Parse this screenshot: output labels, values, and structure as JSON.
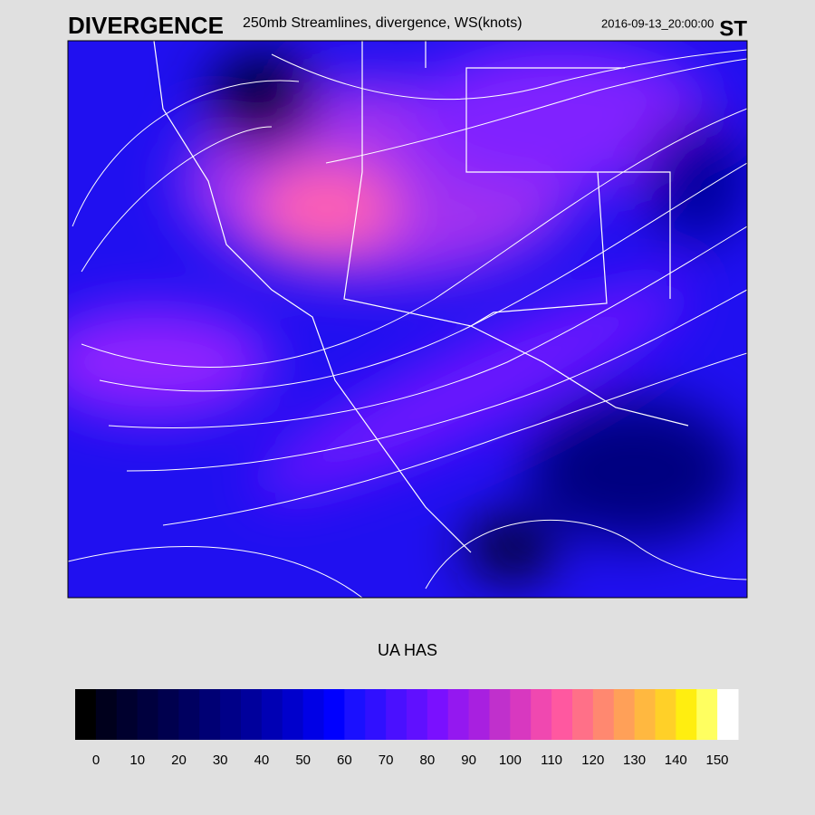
{
  "header": {
    "product": "DIVERGENCE",
    "subtitle": "250mb Streamlines, divergence, WS(knots)",
    "timestamp": "2016-09-13_20:00:00",
    "corner": "ST"
  },
  "colorbar": {
    "label": "UA HAS",
    "ticks": [
      0,
      10,
      20,
      30,
      40,
      50,
      60,
      70,
      80,
      90,
      100,
      110,
      120,
      130,
      140,
      150
    ],
    "colors": [
      "#000000",
      "#00001c",
      "#00002e",
      "#00003e",
      "#00004e",
      "#000060",
      "#000074",
      "#000088",
      "#00009c",
      "#0000b4",
      "#0000cc",
      "#0000e6",
      "#0000ff",
      "#1a10ff",
      "#3010ff",
      "#4a10ff",
      "#6010ff",
      "#7a10ff",
      "#9418f0",
      "#a820e0",
      "#c030cc",
      "#d838c0",
      "#f048b0",
      "#ff58a0",
      "#ff7088",
      "#ff8870",
      "#ffa058",
      "#ffb840",
      "#ffd028",
      "#ffee10",
      "#ffff60",
      "#ffffff"
    ]
  }
}
